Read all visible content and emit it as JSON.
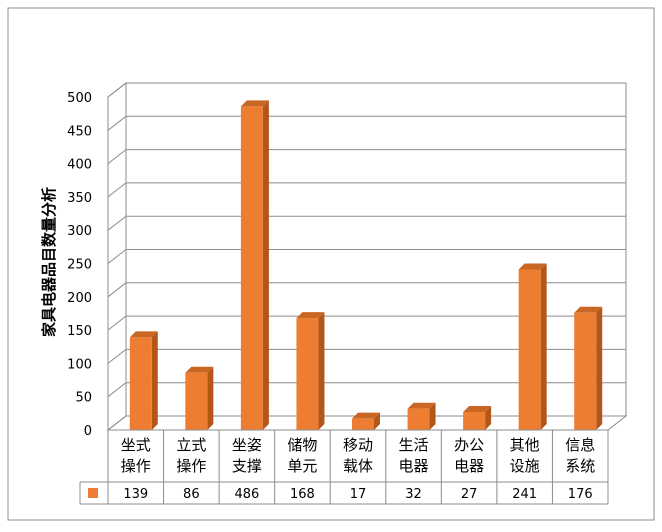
{
  "chart_data": {
    "type": "bar",
    "categories": [
      [
        "坐式",
        "操作"
      ],
      [
        "立式",
        "操作"
      ],
      [
        "坐姿",
        "支撑"
      ],
      [
        "储物",
        "单元"
      ],
      [
        "移动",
        "载体"
      ],
      [
        "生活",
        "电器"
      ],
      [
        "办公",
        "电器"
      ],
      [
        "其他",
        "设施"
      ],
      [
        "信息",
        "系统"
      ]
    ],
    "values": [
      139,
      86,
      486,
      168,
      17,
      32,
      27,
      241,
      176
    ],
    "ylabel": "家具电器品目数量分析",
    "ylim": [
      0,
      500
    ],
    "yticks": [
      "0",
      "50",
      "100",
      "150",
      "200",
      "250",
      "300",
      "350",
      "400",
      "450",
      "500"
    ],
    "grid": true,
    "style": "3d-bar with data table",
    "colors": {
      "bar_front": "#ED7D31",
      "bar_side": "#B3561A",
      "bar_top": "#C96624",
      "grid": "#8C8C8C",
      "border": "#8C8C8C"
    }
  }
}
